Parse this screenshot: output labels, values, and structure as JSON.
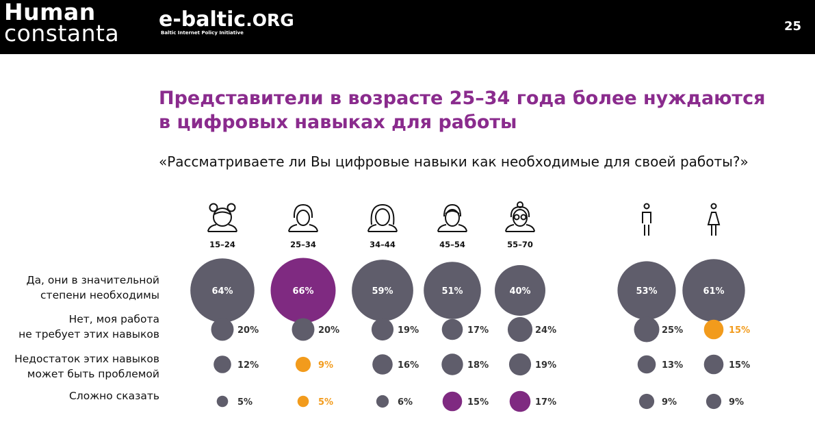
{
  "header": {
    "logo_line1": "Human",
    "logo_line2": "constanta",
    "logo2_main": "e-baltic",
    "logo2_tld": ".ORG",
    "logo2_sub": "Baltic Internet Policy Initiative",
    "page_number": "25"
  },
  "title_line1": "Представители в возрасте 25–34 года более нуждаются",
  "title_line2": "в цифровых навыках для работы",
  "subtitle": "«Рассматриваете ли Вы цифровые навыки как необходимые для своей работы?»",
  "colors": {
    "default": "#5f5d6b",
    "highlight": "#7f2a81",
    "accent_orange": "#f29b1c",
    "title": "#8a2b8d"
  },
  "chart_data": {
    "type": "bubble-matrix",
    "title": "Представители в возрасте 25–34 года более нуждаются в цифровых навыках для работы",
    "question": "«Рассматриваете ли Вы цифровые навыки как необходимые для своей работы?»",
    "rows": [
      {
        "label_line1": "Да, они в значительной",
        "label_line2": "степени необходимы"
      },
      {
        "label_line1": "Нет, моя работа",
        "label_line2": "не требует этих навыков"
      },
      {
        "label_line1": "Недостаток этих навыков",
        "label_line2": "может быть проблемой"
      },
      {
        "label_line1": "Сложно сказать",
        "label_line2": ""
      }
    ],
    "columns": [
      {
        "label": "15–24",
        "icon": "girl-with-buns-icon",
        "values": [
          64,
          20,
          12,
          5
        ],
        "colors": [
          "default",
          "default",
          "default",
          "default"
        ]
      },
      {
        "label": "25–34",
        "icon": "young-woman-icon",
        "values": [
          66,
          20,
          9,
          5
        ],
        "colors": [
          "highlight",
          "default",
          "orange",
          "orange"
        ]
      },
      {
        "label": "34–44",
        "icon": "woman-long-hair-icon",
        "values": [
          59,
          19,
          16,
          6
        ],
        "colors": [
          "default",
          "default",
          "default",
          "default"
        ]
      },
      {
        "label": "45–54",
        "icon": "middle-aged-woman-icon",
        "values": [
          51,
          17,
          18,
          15
        ],
        "colors": [
          "default",
          "default",
          "default",
          "highlight"
        ]
      },
      {
        "label": "55–70",
        "icon": "older-woman-glasses-icon",
        "values": [
          40,
          24,
          19,
          17
        ],
        "colors": [
          "default",
          "default",
          "default",
          "highlight"
        ]
      },
      {
        "label": "",
        "icon": "male-figure-icon",
        "values": [
          53,
          25,
          13,
          9
        ],
        "colors": [
          "default",
          "default",
          "default",
          "default"
        ]
      },
      {
        "label": "",
        "icon": "female-figure-icon",
        "values": [
          61,
          15,
          15,
          9
        ],
        "colors": [
          "default",
          "orange",
          "default",
          "default"
        ]
      }
    ]
  }
}
